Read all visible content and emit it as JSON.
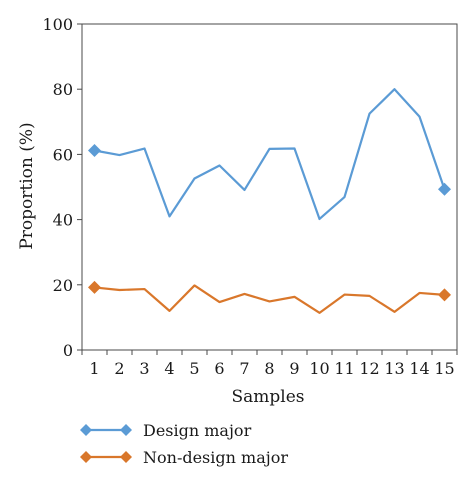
{
  "chart_data": {
    "type": "line",
    "xlabel": "Samples",
    "ylabel": "Proportion (%)",
    "x": [
      1,
      2,
      3,
      4,
      5,
      6,
      7,
      8,
      9,
      10,
      11,
      12,
      13,
      14,
      15
    ],
    "ylim": [
      0,
      100
    ],
    "yticks": [
      0,
      20,
      40,
      60,
      80,
      100
    ],
    "grid": false,
    "legend": "bottom",
    "series": [
      {
        "name": "Design major",
        "color": "#5b9bd5",
        "values": [
          61.2,
          59.8,
          61.8,
          41,
          52.6,
          56.6,
          49.1,
          61.7,
          61.8,
          40.2,
          46.9,
          72.5,
          80,
          71.6,
          49.3
        ]
      },
      {
        "name": "Non-design major",
        "color": "#d9772b",
        "values": [
          19.2,
          18.4,
          18.7,
          12,
          19.8,
          14.7,
          17.2,
          14.9,
          16.3,
          11.4,
          17,
          16.6,
          11.7,
          17.5,
          16.9
        ]
      }
    ]
  }
}
